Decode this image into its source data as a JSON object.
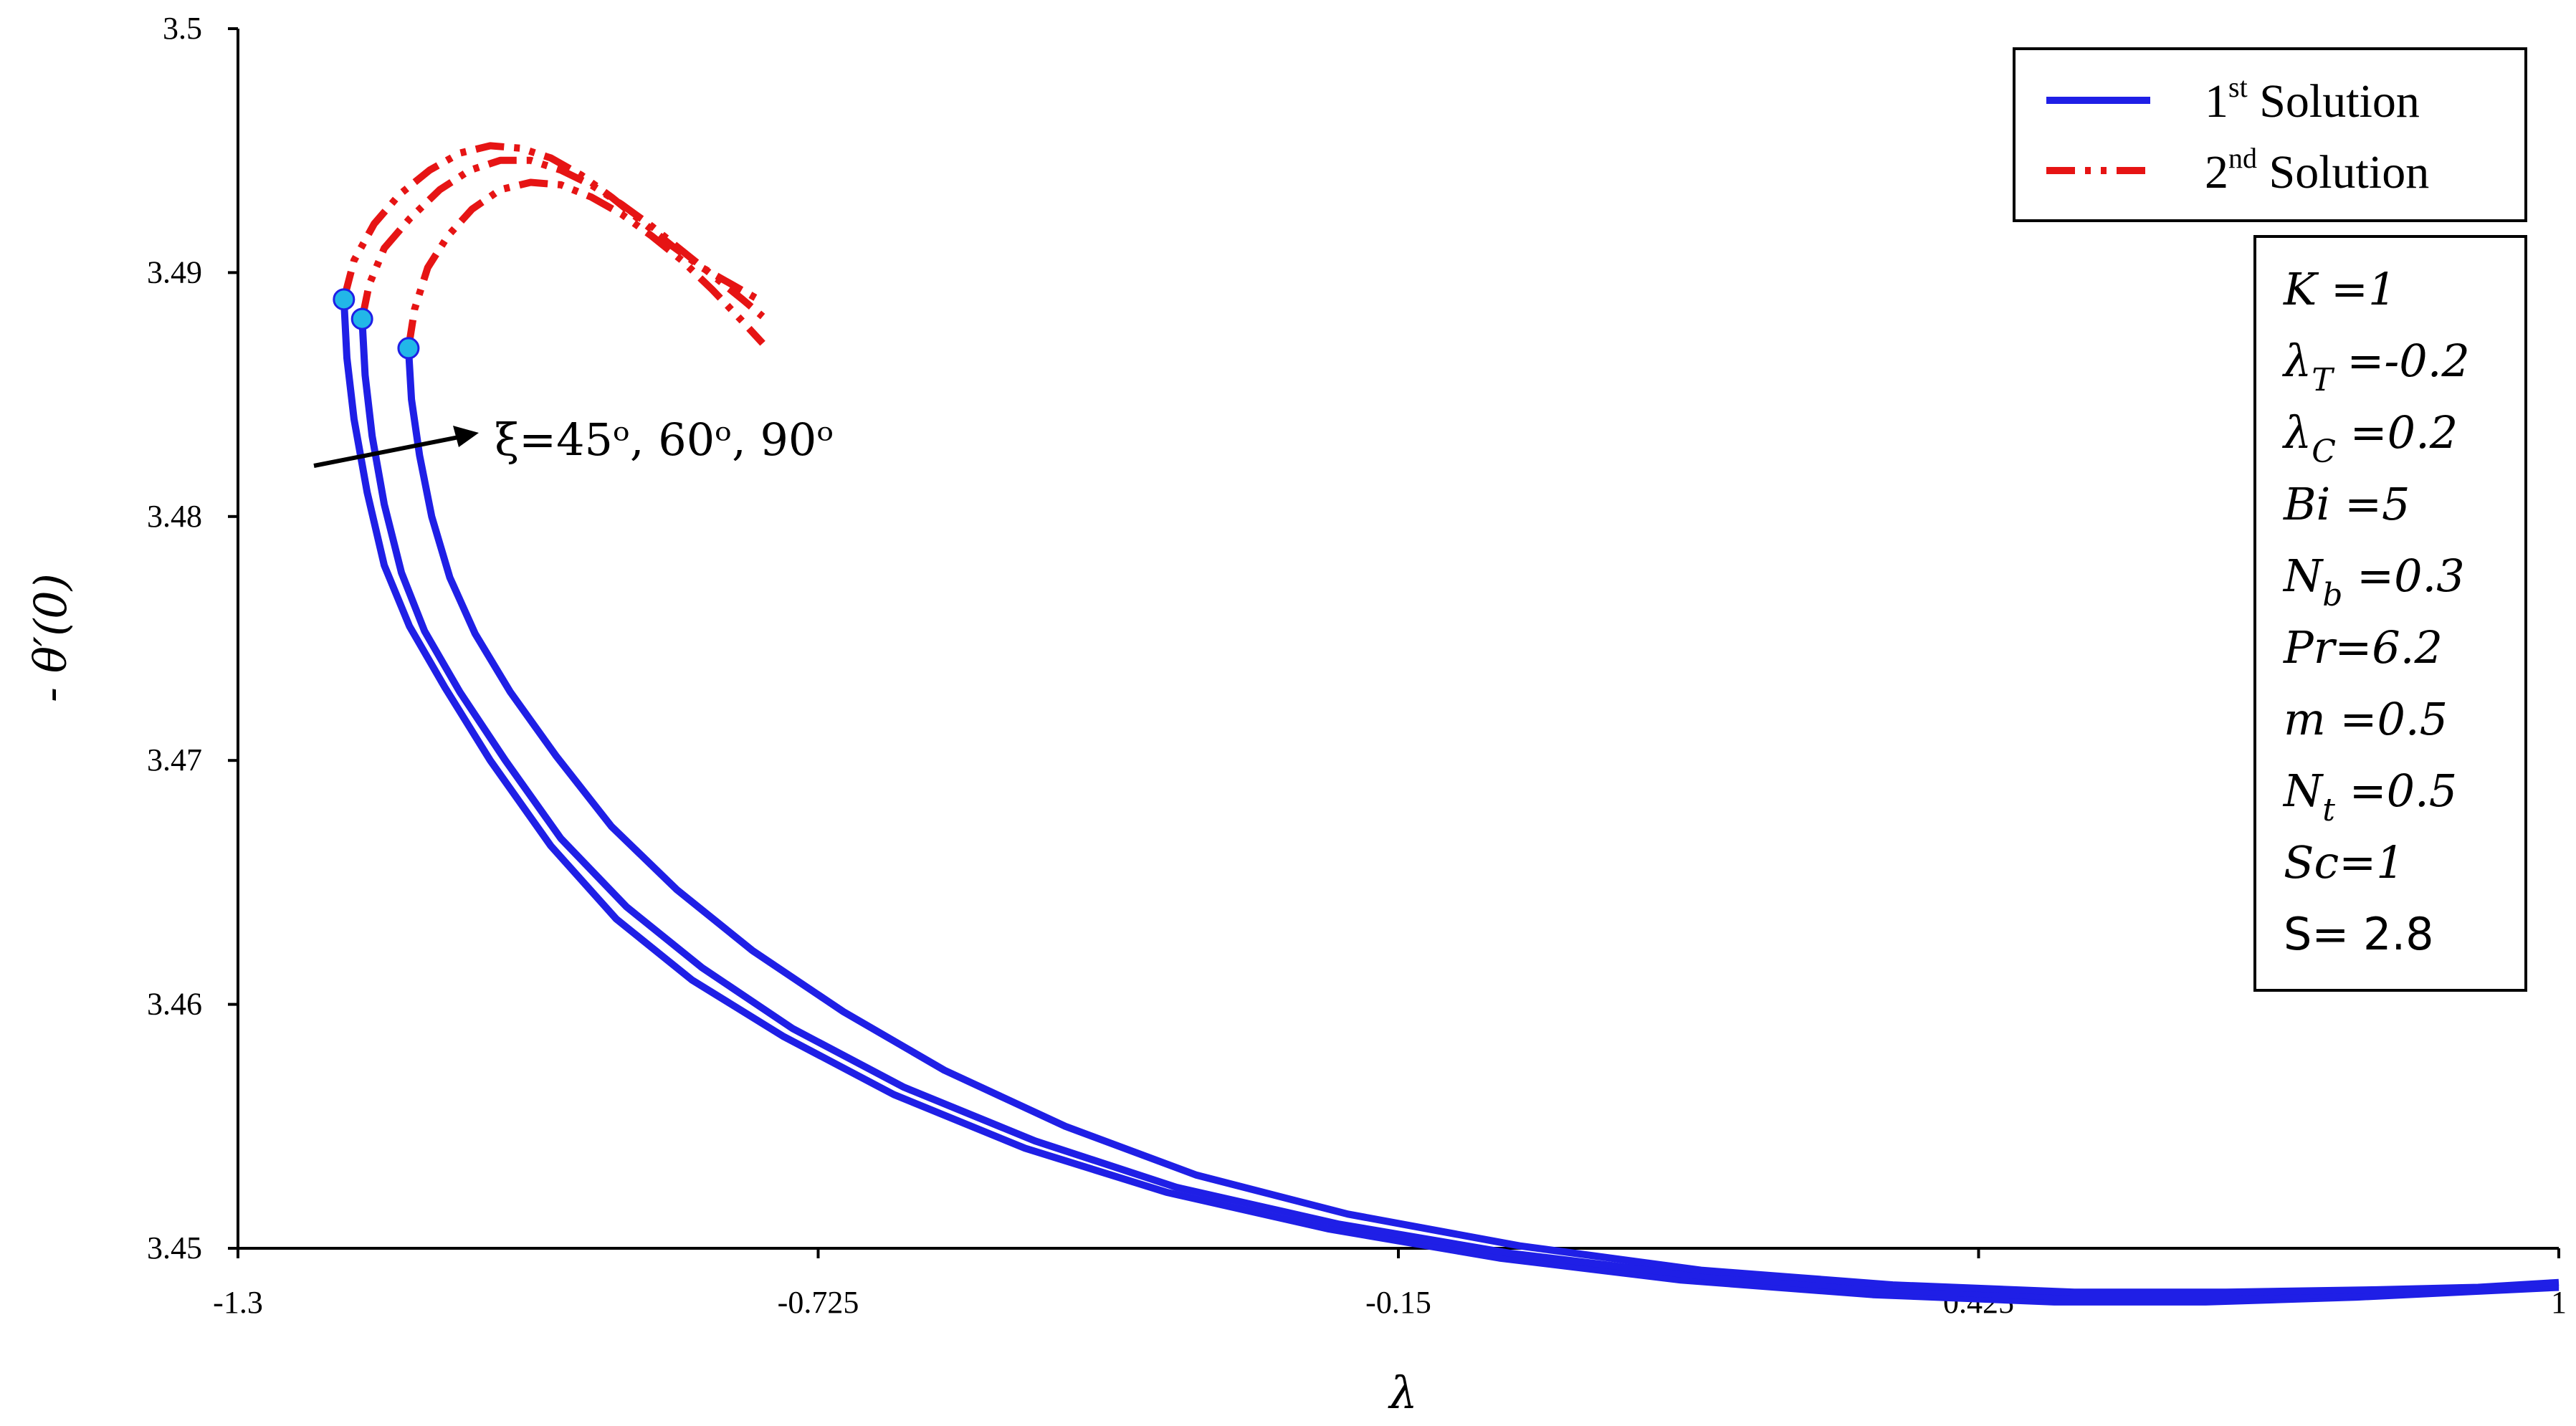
{
  "chart_data": {
    "type": "line",
    "title": "",
    "xlabel": "λ",
    "ylabel": "- θ′(0)",
    "xlim": [
      -1.3,
      1
    ],
    "ylim": [
      3.45,
      3.5
    ],
    "x_ticks": [
      "-1.3",
      "-0.725",
      "-0.15",
      "0.425",
      "1"
    ],
    "y_ticks": [
      "3.45",
      "3.46",
      "3.47",
      "3.48",
      "3.49",
      "3.5"
    ],
    "grid": false,
    "legend": {
      "placement": "top-right",
      "entries": [
        {
          "base": "1",
          "sup": "st",
          "text": " Solution",
          "style": "solid",
          "color": "#1f1fe6"
        },
        {
          "base": "2",
          "sup": "nd",
          "text": " Solution",
          "style": "dash-dot-dot",
          "color": "#e61414"
        }
      ]
    },
    "annotation": "ξ=45ᵒ, 60ᵒ, 90ᵒ",
    "parameters": [
      "K =1",
      "λ_T =-0.2",
      "λ_C =0.2",
      "Bi =5",
      "N_b =0.3",
      "Pr=6.2",
      "m =0.5",
      "N_t =0.5",
      "Sc=1",
      "S= 2.8"
    ],
    "critical_points": [
      {
        "xi": "45",
        "x": -1.195,
        "y": 3.4889
      },
      {
        "xi": "60",
        "x": -1.177,
        "y": 3.4881
      },
      {
        "xi": "90",
        "x": -1.131,
        "y": 3.4869
      }
    ],
    "series": [
      {
        "solution": "1st",
        "xi": "45",
        "style": "solid",
        "x": [
          -1.195,
          -1.192,
          -1.185,
          -1.172,
          -1.155,
          -1.13,
          -1.095,
          -1.05,
          -0.99,
          -0.925,
          -0.85,
          -0.76,
          -0.65,
          -0.52,
          -0.38,
          -0.22,
          -0.05,
          0.13,
          0.32,
          0.5,
          0.65,
          0.8,
          0.9,
          1.0
        ],
        "y": [
          3.4889,
          3.4865,
          3.484,
          3.481,
          3.478,
          3.4755,
          3.473,
          3.47,
          3.4665,
          3.4635,
          3.461,
          3.4587,
          3.4563,
          3.4541,
          3.4523,
          3.4508,
          3.4496,
          3.4487,
          3.4481,
          3.4478,
          3.4478,
          3.448,
          3.4482,
          3.4484
        ]
      },
      {
        "solution": "1st",
        "xi": "60",
        "style": "solid",
        "x": [
          -1.177,
          -1.174,
          -1.167,
          -1.155,
          -1.138,
          -1.115,
          -1.08,
          -1.035,
          -0.98,
          -0.915,
          -0.84,
          -0.75,
          -0.64,
          -0.51,
          -0.37,
          -0.21,
          -0.04,
          0.14,
          0.33,
          0.51,
          0.66,
          0.81,
          0.91,
          1.0
        ],
        "y": [
          3.4881,
          3.4858,
          3.4833,
          3.4805,
          3.4777,
          3.4753,
          3.4728,
          3.47,
          3.4668,
          3.464,
          3.4615,
          3.459,
          3.4566,
          3.4544,
          3.4525,
          3.451,
          3.4498,
          3.4489,
          3.4483,
          3.448,
          3.448,
          3.4481,
          3.4483,
          3.4485
        ]
      },
      {
        "solution": "1st",
        "xi": "90",
        "style": "solid",
        "x": [
          -1.131,
          -1.128,
          -1.12,
          -1.108,
          -1.09,
          -1.065,
          -1.03,
          -0.985,
          -0.93,
          -0.865,
          -0.79,
          -0.7,
          -0.6,
          -0.48,
          -0.35,
          -0.2,
          -0.03,
          0.15,
          0.34,
          0.52,
          0.67,
          0.82,
          0.92,
          1.0
        ],
        "y": [
          3.4869,
          3.4848,
          3.4825,
          3.48,
          3.4775,
          3.4752,
          3.4728,
          3.4702,
          3.4673,
          3.4647,
          3.4622,
          3.4597,
          3.4573,
          3.455,
          3.453,
          3.4514,
          3.4501,
          3.4491,
          3.4485,
          3.4482,
          3.4482,
          3.4483,
          3.4484,
          3.4486
        ]
      },
      {
        "solution": "2nd",
        "xi": "45",
        "style": "dash-dot-dot",
        "x": [
          -1.195,
          -1.185,
          -1.165,
          -1.14,
          -1.11,
          -1.08,
          -1.05,
          -1.02,
          -0.99,
          -0.96,
          -0.93,
          -0.9,
          -0.87,
          -0.84,
          -0.81,
          -0.78
        ],
        "y": [
          3.4889,
          3.4905,
          3.492,
          3.4932,
          3.4942,
          3.4949,
          3.4952,
          3.4951,
          3.4947,
          3.494,
          3.4931,
          3.4921,
          3.4911,
          3.4902,
          3.4895,
          3.4888
        ]
      },
      {
        "solution": "2nd",
        "xi": "60",
        "style": "dash-dot-dot",
        "x": [
          -1.177,
          -1.17,
          -1.155,
          -1.13,
          -1.1,
          -1.07,
          -1.04,
          -1.01,
          -0.98,
          -0.95,
          -0.92,
          -0.89,
          -0.86,
          -0.83,
          -0.8,
          -0.78
        ],
        "y": [
          3.4881,
          3.4895,
          3.491,
          3.4922,
          3.4934,
          3.4942,
          3.4946,
          3.4946,
          3.4942,
          3.4936,
          3.4928,
          3.4919,
          3.4909,
          3.4899,
          3.4889,
          3.4882
        ]
      },
      {
        "solution": "2nd",
        "xi": "90",
        "style": "dash-dot-dot",
        "x": [
          -1.131,
          -1.125,
          -1.112,
          -1.092,
          -1.068,
          -1.04,
          -1.01,
          -0.98,
          -0.95,
          -0.92,
          -0.89,
          -0.86,
          -0.83,
          -0.8,
          -0.78
        ],
        "y": [
          3.4869,
          3.4885,
          3.4902,
          3.4915,
          3.4926,
          3.4934,
          3.4937,
          3.4936,
          3.4931,
          3.4924,
          3.4915,
          3.4905,
          3.4893,
          3.488,
          3.4871
        ]
      }
    ]
  }
}
